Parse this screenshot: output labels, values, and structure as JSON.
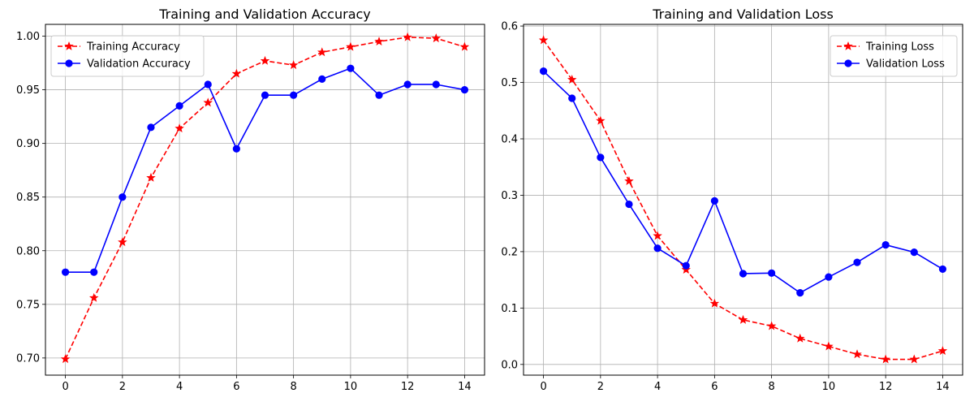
{
  "chart_data": [
    {
      "type": "line",
      "title": "Training and Validation Accuracy",
      "xlabel": "",
      "ylabel": "",
      "x": [
        0,
        1,
        2,
        3,
        4,
        5,
        6,
        7,
        8,
        9,
        10,
        11,
        12,
        13,
        14
      ],
      "xlim": [
        -0.7,
        14.7
      ],
      "ylim": [
        0.684,
        1.011
      ],
      "xticks": [
        0,
        2,
        4,
        6,
        8,
        10,
        12,
        14
      ],
      "xtick_labels": [
        "0",
        "2",
        "4",
        "6",
        "8",
        "10",
        "12",
        "14"
      ],
      "yticks": [
        0.7,
        0.75,
        0.8,
        0.85,
        0.9,
        0.95,
        1.0
      ],
      "ytick_labels": [
        "0.70",
        "0.75",
        "0.80",
        "0.85",
        "0.90",
        "0.95",
        "1.00"
      ],
      "grid": true,
      "legend": "upper-left",
      "series": [
        {
          "name": "Training Accuracy",
          "color": "#ff0000",
          "line_style": "dashed",
          "marker": "star",
          "values": [
            0.699,
            0.756,
            0.808,
            0.868,
            0.914,
            0.938,
            0.965,
            0.977,
            0.973,
            0.985,
            0.99,
            0.995,
            0.999,
            0.998,
            0.99
          ]
        },
        {
          "name": "Validation Accuracy",
          "color": "#0000ff",
          "line_style": "solid",
          "marker": "circle",
          "values": [
            0.78,
            0.78,
            0.85,
            0.915,
            0.935,
            0.955,
            0.895,
            0.945,
            0.945,
            0.96,
            0.97,
            0.945,
            0.955,
            0.955,
            0.95
          ]
        }
      ]
    },
    {
      "type": "line",
      "title": "Training and Validation Loss",
      "xlabel": "",
      "ylabel": "",
      "x": [
        0,
        1,
        2,
        3,
        4,
        5,
        6,
        7,
        8,
        9,
        10,
        11,
        12,
        13,
        14
      ],
      "xlim": [
        -0.7,
        14.7
      ],
      "ylim": [
        -0.019,
        0.603
      ],
      "xticks": [
        0,
        2,
        4,
        6,
        8,
        10,
        12,
        14
      ],
      "xtick_labels": [
        "0",
        "2",
        "4",
        "6",
        "8",
        "10",
        "12",
        "14"
      ],
      "yticks": [
        0.0,
        0.1,
        0.2,
        0.3,
        0.4,
        0.5,
        0.6
      ],
      "ytick_labels": [
        "0.0",
        "0.1",
        "0.2",
        "0.3",
        "0.4",
        "0.5",
        "0.6"
      ],
      "grid": true,
      "legend": "upper-right",
      "series": [
        {
          "name": "Training Loss",
          "color": "#ff0000",
          "line_style": "dashed",
          "marker": "star",
          "values": [
            0.575,
            0.505,
            0.432,
            0.325,
            0.228,
            0.168,
            0.108,
            0.079,
            0.068,
            0.046,
            0.032,
            0.018,
            0.009,
            0.009,
            0.024
          ]
        },
        {
          "name": "Validation Loss",
          "color": "#0000ff",
          "line_style": "solid",
          "marker": "circle",
          "values": [
            0.52,
            0.472,
            0.367,
            0.284,
            0.206,
            0.175,
            0.29,
            0.161,
            0.162,
            0.127,
            0.155,
            0.181,
            0.212,
            0.199,
            0.169
          ]
        }
      ]
    }
  ]
}
